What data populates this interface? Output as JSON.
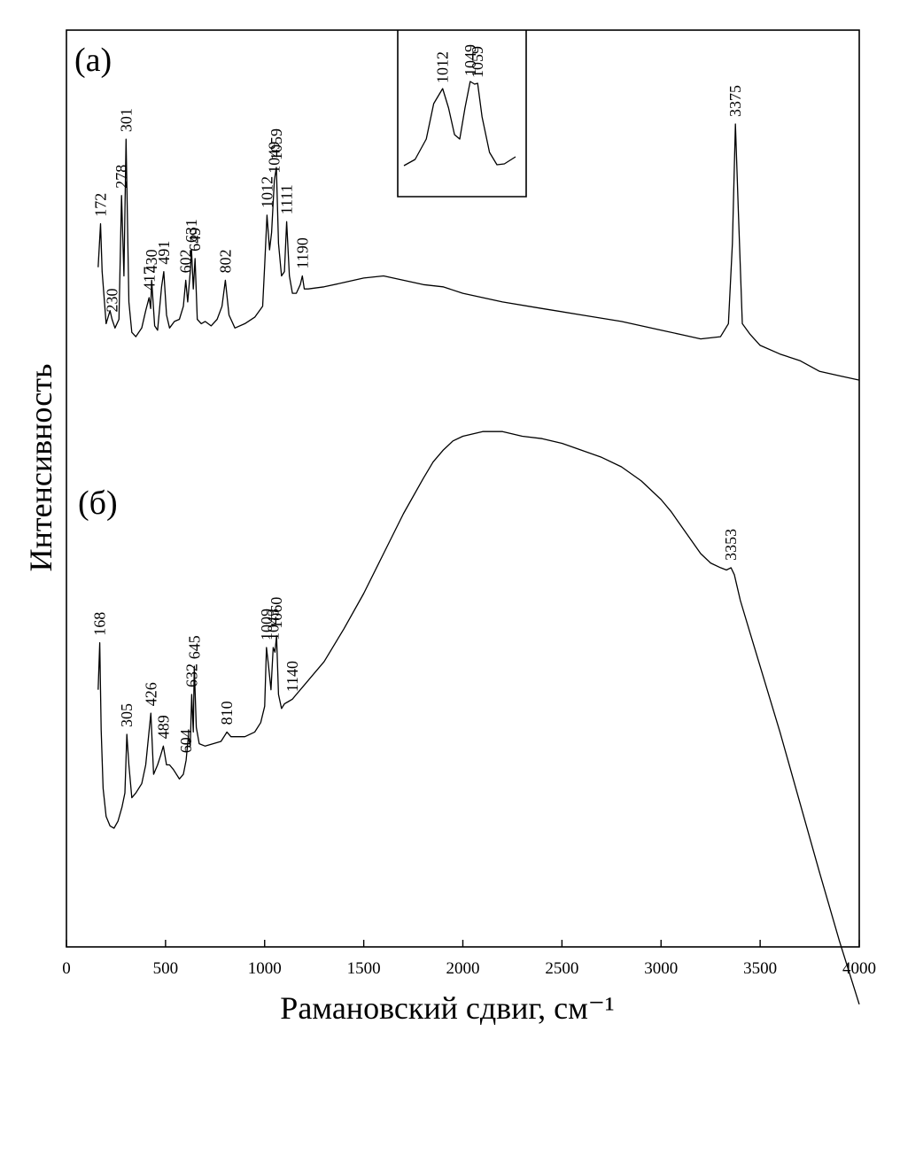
{
  "chart_data": {
    "type": "line",
    "title": "",
    "xlabel": "Рамановский сдвиг, см⁻¹",
    "ylabel": "Интенсивность",
    "xlim": [
      0,
      4000
    ],
    "xticks": [
      0,
      500,
      1000,
      1500,
      2000,
      2500,
      3000,
      3500,
      4000
    ],
    "y_unit": "relative",
    "grid": false,
    "series": [
      {
        "name": "(a)",
        "peak_labels": [
          172,
          230,
          278,
          301,
          417,
          430,
          491,
          602,
          631,
          649,
          802,
          1012,
          1049,
          1059,
          1111,
          1190,
          3375
        ],
        "x": [
          160,
          172,
          180,
          200,
          220,
          230,
          245,
          265,
          278,
          290,
          301,
          315,
          330,
          350,
          380,
          400,
          417,
          425,
          430,
          445,
          460,
          480,
          491,
          505,
          520,
          545,
          570,
          590,
          602,
          612,
          625,
          631,
          640,
          649,
          660,
          680,
          700,
          730,
          760,
          785,
          802,
          820,
          850,
          900,
          950,
          990,
          1000,
          1012,
          1025,
          1035,
          1049,
          1059,
          1070,
          1085,
          1100,
          1111,
          1125,
          1140,
          1160,
          1180,
          1190,
          1200,
          1220,
          1300,
          1400,
          1500,
          1600,
          1700,
          1800,
          1900,
          2000,
          2200,
          2400,
          2600,
          2800,
          3000,
          3100,
          3200,
          3300,
          3340,
          3360,
          3375,
          3390,
          3410,
          3450,
          3500,
          3600,
          3700,
          3800,
          3900,
          4000
        ],
        "y": [
          0.34,
          0.54,
          0.32,
          0.08,
          0.14,
          0.1,
          0.06,
          0.1,
          0.67,
          0.3,
          0.93,
          0.18,
          0.04,
          0.02,
          0.06,
          0.14,
          0.2,
          0.15,
          0.28,
          0.07,
          0.05,
          0.25,
          0.32,
          0.12,
          0.06,
          0.09,
          0.1,
          0.16,
          0.28,
          0.18,
          0.32,
          0.42,
          0.24,
          0.38,
          0.1,
          0.08,
          0.09,
          0.07,
          0.1,
          0.16,
          0.28,
          0.12,
          0.06,
          0.08,
          0.11,
          0.16,
          0.35,
          0.58,
          0.42,
          0.5,
          0.74,
          0.8,
          0.45,
          0.3,
          0.32,
          0.55,
          0.3,
          0.22,
          0.22,
          0.26,
          0.3,
          0.24,
          0.24,
          0.25,
          0.27,
          0.29,
          0.3,
          0.28,
          0.26,
          0.25,
          0.22,
          0.18,
          0.15,
          0.12,
          0.09,
          0.05,
          0.03,
          0.01,
          0.02,
          0.08,
          0.45,
          1.0,
          0.6,
          0.08,
          0.03,
          -0.02,
          -0.06,
          -0.09,
          -0.14,
          -0.16,
          -0.18
        ]
      },
      {
        "name": "(б)",
        "peak_labels": [
          168,
          305,
          426,
          489,
          604,
          632,
          645,
          810,
          1009,
          1043,
          1060,
          1140,
          3353
        ],
        "x": [
          160,
          168,
          175,
          185,
          200,
          220,
          240,
          260,
          280,
          295,
          305,
          315,
          330,
          350,
          380,
          400,
          426,
          440,
          460,
          475,
          489,
          505,
          520,
          540,
          570,
          590,
          604,
          615,
          625,
          632,
          640,
          645,
          655,
          670,
          700,
          740,
          780,
          810,
          830,
          860,
          900,
          950,
          980,
          1000,
          1009,
          1020,
          1032,
          1043,
          1052,
          1060,
          1070,
          1085,
          1100,
          1120,
          1140,
          1160,
          1200,
          1300,
          1400,
          1500,
          1600,
          1700,
          1800,
          1850,
          1900,
          1950,
          2000,
          2050,
          2100,
          2200,
          2300,
          2400,
          2500,
          2600,
          2700,
          2800,
          2900,
          3000,
          3050,
          3100,
          3150,
          3200,
          3250,
          3300,
          3330,
          3353,
          3370,
          3400,
          3450,
          3500,
          3550,
          3600,
          3700,
          3800,
          3900,
          4000
        ],
        "y": [
          0.62,
          0.82,
          0.45,
          0.2,
          0.08,
          0.04,
          0.03,
          0.06,
          0.12,
          0.18,
          0.43,
          0.3,
          0.16,
          0.18,
          0.22,
          0.3,
          0.52,
          0.26,
          0.3,
          0.34,
          0.38,
          0.3,
          0.3,
          0.28,
          0.24,
          0.26,
          0.32,
          0.42,
          0.38,
          0.6,
          0.44,
          0.72,
          0.46,
          0.39,
          0.38,
          0.39,
          0.4,
          0.44,
          0.42,
          0.42,
          0.42,
          0.44,
          0.48,
          0.55,
          0.8,
          0.72,
          0.62,
          0.8,
          0.78,
          0.85,
          0.6,
          0.54,
          0.56,
          0.57,
          0.58,
          0.6,
          0.64,
          0.74,
          0.88,
          1.03,
          1.2,
          1.37,
          1.52,
          1.59,
          1.64,
          1.68,
          1.7,
          1.71,
          1.72,
          1.72,
          1.7,
          1.69,
          1.67,
          1.64,
          1.61,
          1.57,
          1.51,
          1.43,
          1.38,
          1.32,
          1.26,
          1.2,
          1.16,
          1.14,
          1.13,
          1.14,
          1.11,
          1.0,
          0.86,
          0.72,
          0.58,
          0.44,
          0.14,
          -0.16,
          -0.45,
          -0.72
        ]
      }
    ],
    "inset": {
      "series_of": "(a)",
      "peak_labels": [
        1012,
        1049,
        1059
      ],
      "x": [
        960,
        975,
        990,
        1000,
        1012,
        1020,
        1028,
        1035,
        1042,
        1049,
        1055,
        1059,
        1065,
        1075,
        1085,
        1095,
        1110
      ],
      "y": [
        0.05,
        0.12,
        0.35,
        0.75,
        0.92,
        0.7,
        0.4,
        0.35,
        0.7,
        1.0,
        0.97,
        0.98,
        0.6,
        0.2,
        0.06,
        0.07,
        0.15
      ]
    }
  }
}
